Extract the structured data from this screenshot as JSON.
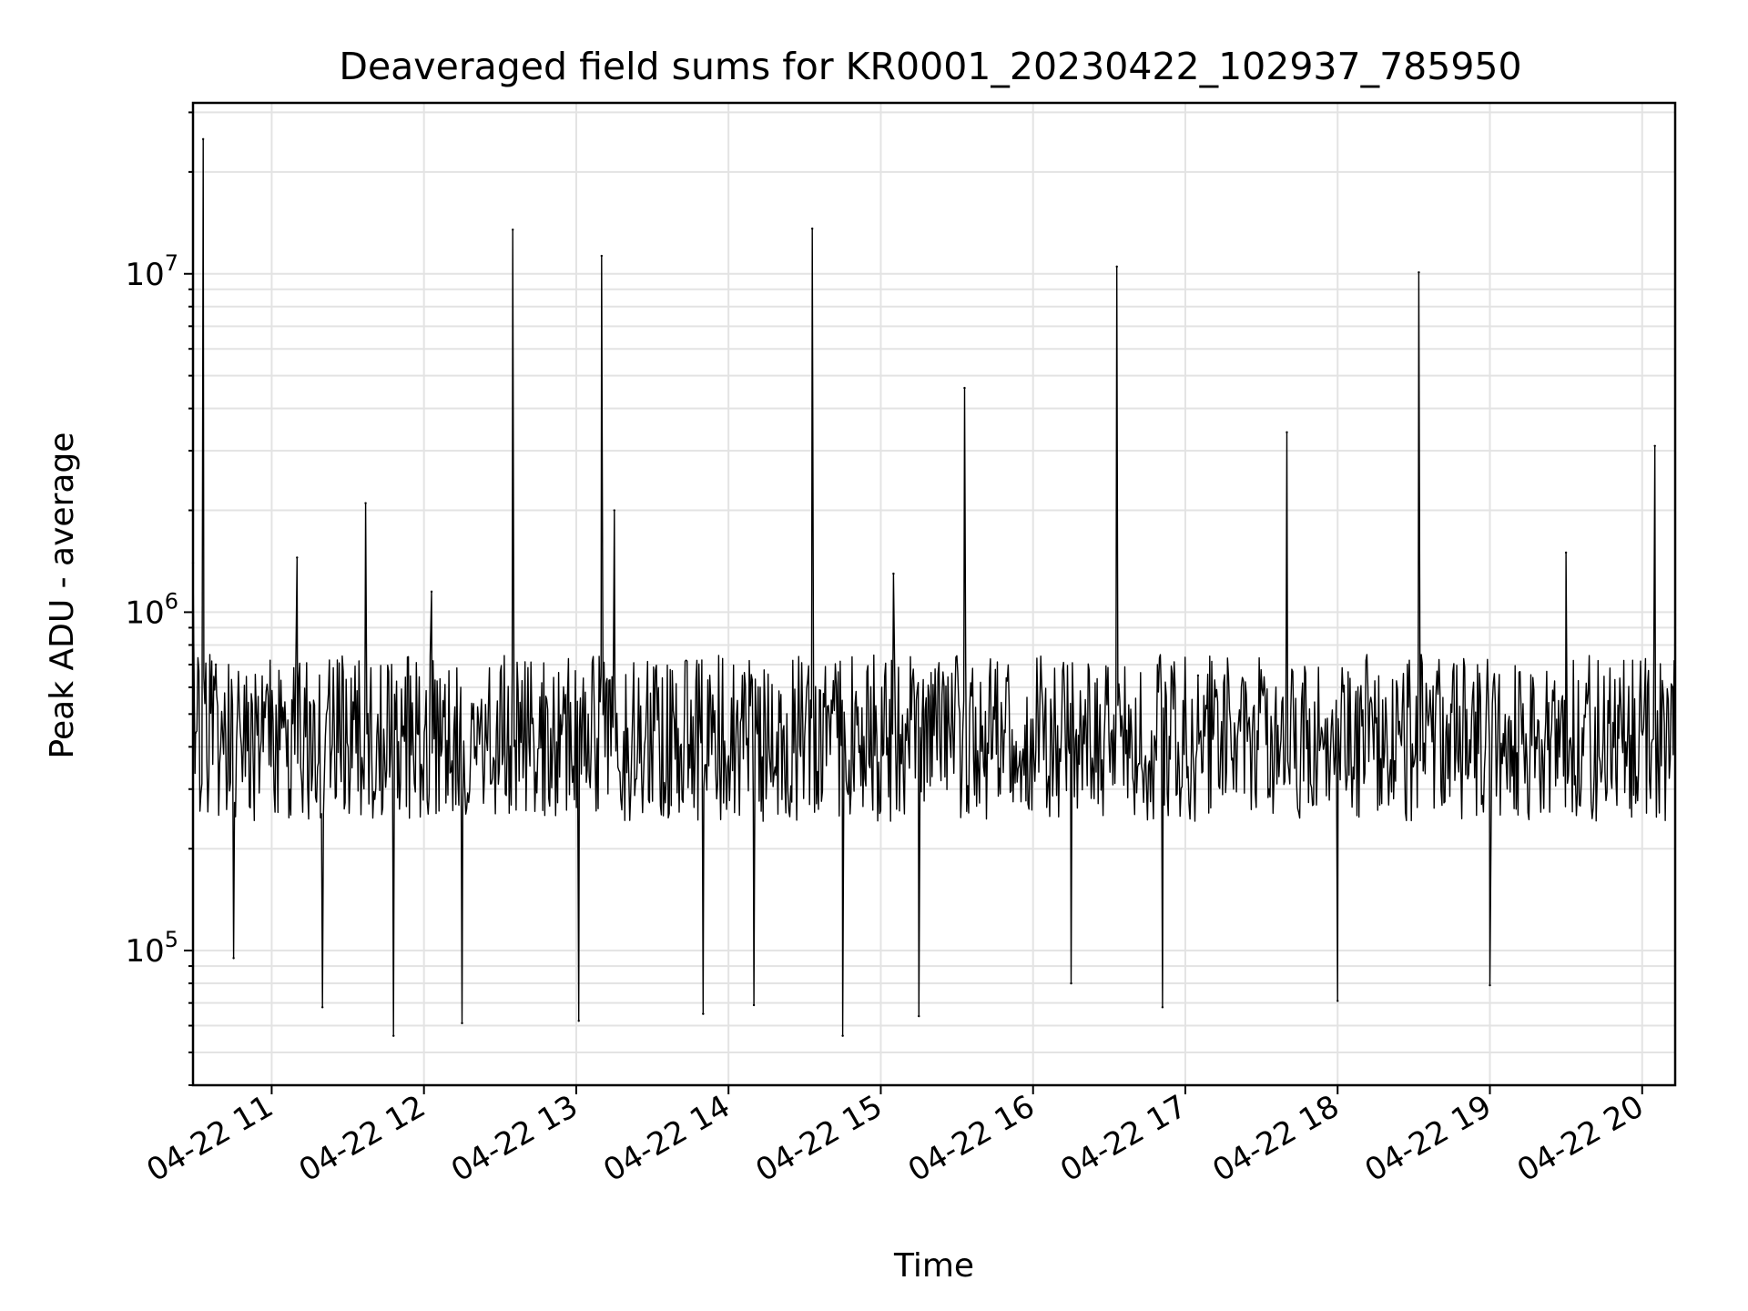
{
  "chart_data": {
    "type": "line",
    "title": "Deaveraged field sums for KR0001_20230422_102937_785950",
    "xlabel": "Time",
    "ylabel": "Peak ADU - average",
    "x_tick_labels": [
      "04-22 11",
      "04-22 12",
      "04-22 13",
      "04-22 14",
      "04-22 15",
      "04-22 16",
      "04-22 17",
      "04-22 18",
      "04-22 19",
      "04-22 20"
    ],
    "x_ticks": [
      "2023-04-22 11:00",
      "2023-04-22 12:00",
      "2023-04-22 13:00",
      "2023-04-22 14:00",
      "2023-04-22 15:00",
      "2023-04-22 16:00",
      "2023-04-22 17:00",
      "2023-04-22 18:00",
      "2023-04-22 19:00",
      "2023-04-22 20:00"
    ],
    "y_ticks": [
      {
        "value": 100000,
        "base": "10",
        "exp": "5"
      },
      {
        "value": 1000000,
        "base": "10",
        "exp": "6"
      },
      {
        "value": 10000000,
        "base": "10",
        "exp": "7"
      }
    ],
    "xlim": [
      "2023-04-22 10:29",
      "2023-04-22 20:13"
    ],
    "ylim": [
      40000,
      32000000
    ],
    "yscale": "log",
    "grid": true,
    "color": "#000000",
    "baseline_range": [
      150000,
      1000000
    ],
    "series": [
      {
        "x": [
          "2023-04-22 10:29",
          "2023-04-22 10:30",
          "2023-04-22 10:33",
          "2023-04-22 10:38",
          "2023-04-22 10:45",
          "2023-04-22 11:10",
          "2023-04-22 11:20",
          "2023-04-22 11:37",
          "2023-04-22 11:48",
          "2023-04-22 12:03",
          "2023-04-22 12:15",
          "2023-04-22 12:35",
          "2023-04-22 13:01",
          "2023-04-22 13:10",
          "2023-04-22 13:15",
          "2023-04-22 13:50",
          "2023-04-22 14:10",
          "2023-04-22 14:33",
          "2023-04-22 14:45",
          "2023-04-22 15:05",
          "2023-04-22 15:15",
          "2023-04-22 15:33",
          "2023-04-22 16:15",
          "2023-04-22 16:33",
          "2023-04-22 16:51",
          "2023-04-22 17:05",
          "2023-04-22 17:40",
          "2023-04-22 18:00",
          "2023-04-22 18:32",
          "2023-04-22 19:00",
          "2023-04-22 19:30",
          "2023-04-22 20:05",
          "2023-04-22 20:12"
        ],
        "y": [
          1400000,
          440000,
          25000000,
          700000,
          95000,
          1450000,
          68000,
          2100000,
          56000,
          1150000,
          61000,
          13500000,
          62000,
          11300000,
          2000000,
          65000,
          69000,
          13600000,
          56000,
          1300000,
          64000,
          4600000,
          80000,
          10500000,
          68000,
          650000,
          3400000,
          71000,
          10100000,
          79000,
          1500000,
          3100000,
          600000
        ]
      }
    ]
  }
}
